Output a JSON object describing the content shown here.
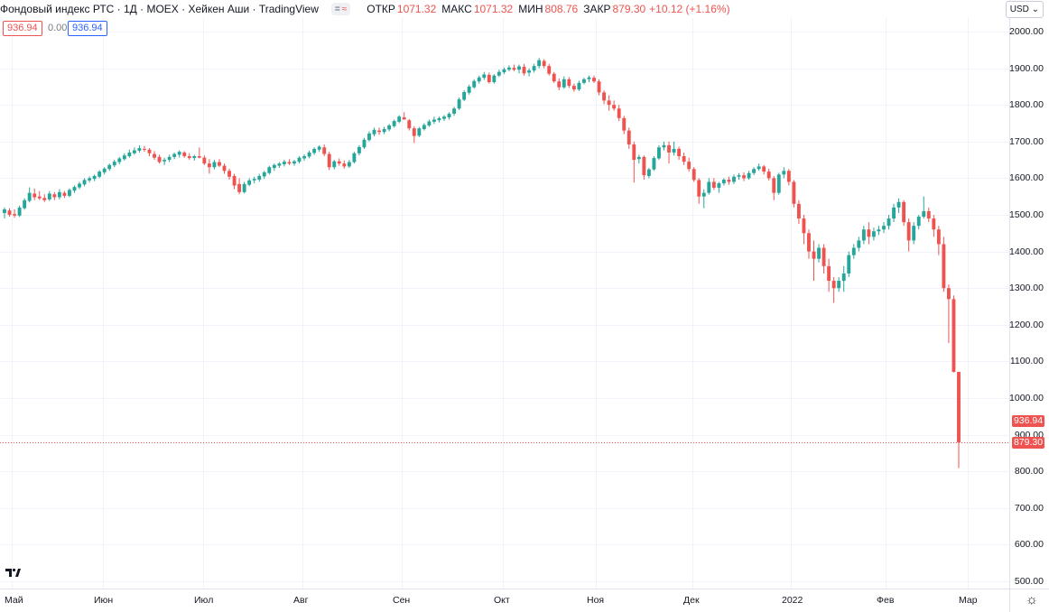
{
  "header": {
    "title": "Фондовый индекс РТС · 1Д · MOEX · Хейкен Аши · TradingView",
    "toggle_eye": "=",
    "toggle_wave": "≈",
    "open_label": "ОТКР",
    "open_value": "1071.32",
    "high_label": "МАКС",
    "high_value": "1071.32",
    "low_label": "МИН",
    "low_value": "808.76",
    "close_label": "ЗАКР",
    "close_value": "879.30",
    "change": "+10.12 (+1.16%)"
  },
  "indicators": {
    "red_value": "936.94",
    "gray_value": "0.00",
    "blue_value": "936.94"
  },
  "currency": "USD",
  "price_tags": {
    "upper": "936.94",
    "lower": "879.30"
  },
  "colors": {
    "up": "#26a69a",
    "down": "#ef5350",
    "grid": "#f0f3fa",
    "last_line": "#ef5350"
  },
  "icons": {
    "logo": "tradingview-logo-icon",
    "settings": "gear-icon",
    "dropdown": "chevron-down-icon"
  },
  "chart_data": {
    "type": "candlestick-heikin-ashi",
    "title": "Фондовый индекс РТС · 1Д · MOEX · Хейкен Аши · TradingView",
    "y_ticks": [
      "2000.00",
      "1900.00",
      "1800.00",
      "1700.00",
      "1600.00",
      "1500.00",
      "1400.00",
      "1300.00",
      "1200.00",
      "1100.00",
      "1000.00",
      "900.00",
      "800.00",
      "700.00",
      "600.00",
      "500.00"
    ],
    "ylim": [
      480,
      2020
    ],
    "x_ticks": [
      "Май",
      "Июн",
      "Июл",
      "Авг",
      "Сен",
      "Окт",
      "Ноя",
      "Дек",
      "2022",
      "Фев",
      "Мар"
    ],
    "last_close": 879.3,
    "grid": true,
    "candles": [
      {
        "o": 1505,
        "h": 1520,
        "l": 1490,
        "c": 1515
      },
      {
        "o": 1512,
        "h": 1518,
        "l": 1495,
        "c": 1500
      },
      {
        "o": 1502,
        "h": 1515,
        "l": 1492,
        "c": 1498
      },
      {
        "o": 1498,
        "h": 1525,
        "l": 1494,
        "c": 1520
      },
      {
        "o": 1518,
        "h": 1545,
        "l": 1514,
        "c": 1540
      },
      {
        "o": 1538,
        "h": 1575,
        "l": 1534,
        "c": 1560
      },
      {
        "o": 1558,
        "h": 1572,
        "l": 1540,
        "c": 1548
      },
      {
        "o": 1550,
        "h": 1565,
        "l": 1540,
        "c": 1545
      },
      {
        "o": 1546,
        "h": 1556,
        "l": 1535,
        "c": 1540
      },
      {
        "o": 1542,
        "h": 1565,
        "l": 1538,
        "c": 1558
      },
      {
        "o": 1556,
        "h": 1562,
        "l": 1540,
        "c": 1548
      },
      {
        "o": 1548,
        "h": 1570,
        "l": 1542,
        "c": 1562
      },
      {
        "o": 1560,
        "h": 1565,
        "l": 1546,
        "c": 1552
      },
      {
        "o": 1552,
        "h": 1572,
        "l": 1548,
        "c": 1568
      },
      {
        "o": 1566,
        "h": 1580,
        "l": 1560,
        "c": 1576
      },
      {
        "o": 1575,
        "h": 1590,
        "l": 1570,
        "c": 1585
      },
      {
        "o": 1583,
        "h": 1600,
        "l": 1578,
        "c": 1595
      },
      {
        "o": 1594,
        "h": 1605,
        "l": 1588,
        "c": 1600
      },
      {
        "o": 1598,
        "h": 1610,
        "l": 1592,
        "c": 1606
      },
      {
        "o": 1604,
        "h": 1622,
        "l": 1600,
        "c": 1618
      },
      {
        "o": 1616,
        "h": 1630,
        "l": 1610,
        "c": 1626
      },
      {
        "o": 1625,
        "h": 1640,
        "l": 1620,
        "c": 1636
      },
      {
        "o": 1635,
        "h": 1650,
        "l": 1630,
        "c": 1645
      },
      {
        "o": 1644,
        "h": 1658,
        "l": 1638,
        "c": 1654
      },
      {
        "o": 1652,
        "h": 1668,
        "l": 1648,
        "c": 1662
      },
      {
        "o": 1660,
        "h": 1678,
        "l": 1656,
        "c": 1670
      },
      {
        "o": 1668,
        "h": 1684,
        "l": 1664,
        "c": 1676
      },
      {
        "o": 1675,
        "h": 1690,
        "l": 1670,
        "c": 1682
      },
      {
        "o": 1680,
        "h": 1688,
        "l": 1672,
        "c": 1678
      },
      {
        "o": 1678,
        "h": 1682,
        "l": 1660,
        "c": 1668
      },
      {
        "o": 1666,
        "h": 1674,
        "l": 1650,
        "c": 1656
      },
      {
        "o": 1658,
        "h": 1664,
        "l": 1640,
        "c": 1644
      },
      {
        "o": 1646,
        "h": 1656,
        "l": 1636,
        "c": 1650
      },
      {
        "o": 1650,
        "h": 1664,
        "l": 1644,
        "c": 1658
      },
      {
        "o": 1658,
        "h": 1670,
        "l": 1652,
        "c": 1666
      },
      {
        "o": 1664,
        "h": 1676,
        "l": 1656,
        "c": 1672
      },
      {
        "o": 1670,
        "h": 1674,
        "l": 1656,
        "c": 1660
      },
      {
        "o": 1660,
        "h": 1668,
        "l": 1650,
        "c": 1655
      },
      {
        "o": 1655,
        "h": 1664,
        "l": 1648,
        "c": 1660
      },
      {
        "o": 1660,
        "h": 1684,
        "l": 1654,
        "c": 1656
      },
      {
        "o": 1656,
        "h": 1662,
        "l": 1636,
        "c": 1640
      },
      {
        "o": 1640,
        "h": 1652,
        "l": 1612,
        "c": 1630
      },
      {
        "o": 1630,
        "h": 1650,
        "l": 1624,
        "c": 1644
      },
      {
        "o": 1644,
        "h": 1652,
        "l": 1630,
        "c": 1634
      },
      {
        "o": 1634,
        "h": 1640,
        "l": 1612,
        "c": 1620
      },
      {
        "o": 1620,
        "h": 1626,
        "l": 1596,
        "c": 1604
      },
      {
        "o": 1606,
        "h": 1612,
        "l": 1570,
        "c": 1580
      },
      {
        "o": 1584,
        "h": 1600,
        "l": 1556,
        "c": 1562
      },
      {
        "o": 1562,
        "h": 1590,
        "l": 1558,
        "c": 1584
      },
      {
        "o": 1582,
        "h": 1600,
        "l": 1578,
        "c": 1594
      },
      {
        "o": 1594,
        "h": 1604,
        "l": 1586,
        "c": 1598
      },
      {
        "o": 1596,
        "h": 1612,
        "l": 1590,
        "c": 1606
      },
      {
        "o": 1605,
        "h": 1620,
        "l": 1598,
        "c": 1616
      },
      {
        "o": 1614,
        "h": 1634,
        "l": 1610,
        "c": 1630
      },
      {
        "o": 1628,
        "h": 1640,
        "l": 1620,
        "c": 1636
      },
      {
        "o": 1634,
        "h": 1644,
        "l": 1628,
        "c": 1640
      },
      {
        "o": 1638,
        "h": 1650,
        "l": 1632,
        "c": 1645
      },
      {
        "o": 1644,
        "h": 1652,
        "l": 1636,
        "c": 1640
      },
      {
        "o": 1640,
        "h": 1650,
        "l": 1634,
        "c": 1646
      },
      {
        "o": 1645,
        "h": 1660,
        "l": 1640,
        "c": 1656
      },
      {
        "o": 1654,
        "h": 1665,
        "l": 1648,
        "c": 1660
      },
      {
        "o": 1659,
        "h": 1675,
        "l": 1654,
        "c": 1670
      },
      {
        "o": 1669,
        "h": 1684,
        "l": 1664,
        "c": 1680
      },
      {
        "o": 1678,
        "h": 1690,
        "l": 1672,
        "c": 1686
      },
      {
        "o": 1684,
        "h": 1692,
        "l": 1660,
        "c": 1666
      },
      {
        "o": 1666,
        "h": 1672,
        "l": 1622,
        "c": 1630
      },
      {
        "o": 1630,
        "h": 1650,
        "l": 1624,
        "c": 1646
      },
      {
        "o": 1646,
        "h": 1654,
        "l": 1634,
        "c": 1640
      },
      {
        "o": 1640,
        "h": 1648,
        "l": 1626,
        "c": 1632
      },
      {
        "o": 1632,
        "h": 1650,
        "l": 1628,
        "c": 1644
      },
      {
        "o": 1644,
        "h": 1672,
        "l": 1640,
        "c": 1668
      },
      {
        "o": 1668,
        "h": 1690,
        "l": 1662,
        "c": 1685
      },
      {
        "o": 1684,
        "h": 1710,
        "l": 1680,
        "c": 1705
      },
      {
        "o": 1704,
        "h": 1728,
        "l": 1700,
        "c": 1722
      },
      {
        "o": 1720,
        "h": 1738,
        "l": 1714,
        "c": 1732
      },
      {
        "o": 1730,
        "h": 1738,
        "l": 1718,
        "c": 1726
      },
      {
        "o": 1726,
        "h": 1740,
        "l": 1720,
        "c": 1734
      },
      {
        "o": 1733,
        "h": 1748,
        "l": 1728,
        "c": 1744
      },
      {
        "o": 1742,
        "h": 1760,
        "l": 1738,
        "c": 1756
      },
      {
        "o": 1754,
        "h": 1772,
        "l": 1750,
        "c": 1768
      },
      {
        "o": 1766,
        "h": 1780,
        "l": 1760,
        "c": 1760
      },
      {
        "o": 1758,
        "h": 1762,
        "l": 1730,
        "c": 1736
      },
      {
        "o": 1736,
        "h": 1742,
        "l": 1696,
        "c": 1715
      },
      {
        "o": 1716,
        "h": 1740,
        "l": 1712,
        "c": 1736
      },
      {
        "o": 1734,
        "h": 1750,
        "l": 1730,
        "c": 1745
      },
      {
        "o": 1744,
        "h": 1760,
        "l": 1740,
        "c": 1755
      },
      {
        "o": 1754,
        "h": 1768,
        "l": 1748,
        "c": 1760
      },
      {
        "o": 1758,
        "h": 1768,
        "l": 1752,
        "c": 1764
      },
      {
        "o": 1762,
        "h": 1772,
        "l": 1756,
        "c": 1768
      },
      {
        "o": 1766,
        "h": 1780,
        "l": 1760,
        "c": 1776
      },
      {
        "o": 1776,
        "h": 1795,
        "l": 1770,
        "c": 1790
      },
      {
        "o": 1790,
        "h": 1820,
        "l": 1786,
        "c": 1815
      },
      {
        "o": 1814,
        "h": 1840,
        "l": 1810,
        "c": 1835
      },
      {
        "o": 1833,
        "h": 1855,
        "l": 1828,
        "c": 1850
      },
      {
        "o": 1848,
        "h": 1870,
        "l": 1844,
        "c": 1865
      },
      {
        "o": 1864,
        "h": 1880,
        "l": 1858,
        "c": 1875
      },
      {
        "o": 1874,
        "h": 1890,
        "l": 1868,
        "c": 1883
      },
      {
        "o": 1882,
        "h": 1888,
        "l": 1858,
        "c": 1862
      },
      {
        "o": 1862,
        "h": 1884,
        "l": 1858,
        "c": 1880
      },
      {
        "o": 1880,
        "h": 1896,
        "l": 1876,
        "c": 1890
      },
      {
        "o": 1889,
        "h": 1902,
        "l": 1884,
        "c": 1897
      },
      {
        "o": 1896,
        "h": 1908,
        "l": 1892,
        "c": 1902
      },
      {
        "o": 1901,
        "h": 1910,
        "l": 1892,
        "c": 1896
      },
      {
        "o": 1896,
        "h": 1910,
        "l": 1886,
        "c": 1905
      },
      {
        "o": 1904,
        "h": 1912,
        "l": 1880,
        "c": 1886
      },
      {
        "o": 1888,
        "h": 1900,
        "l": 1878,
        "c": 1894
      },
      {
        "o": 1894,
        "h": 1912,
        "l": 1888,
        "c": 1906
      },
      {
        "o": 1906,
        "h": 1928,
        "l": 1900,
        "c": 1922
      },
      {
        "o": 1920,
        "h": 1925,
        "l": 1900,
        "c": 1906
      },
      {
        "o": 1906,
        "h": 1912,
        "l": 1880,
        "c": 1885
      },
      {
        "o": 1885,
        "h": 1890,
        "l": 1860,
        "c": 1864
      },
      {
        "o": 1864,
        "h": 1872,
        "l": 1840,
        "c": 1848
      },
      {
        "o": 1848,
        "h": 1878,
        "l": 1844,
        "c": 1870
      },
      {
        "o": 1870,
        "h": 1876,
        "l": 1846,
        "c": 1852
      },
      {
        "o": 1852,
        "h": 1858,
        "l": 1836,
        "c": 1842
      },
      {
        "o": 1842,
        "h": 1866,
        "l": 1838,
        "c": 1860
      },
      {
        "o": 1860,
        "h": 1874,
        "l": 1856,
        "c": 1870
      },
      {
        "o": 1870,
        "h": 1880,
        "l": 1862,
        "c": 1875
      },
      {
        "o": 1874,
        "h": 1880,
        "l": 1860,
        "c": 1864
      },
      {
        "o": 1864,
        "h": 1870,
        "l": 1826,
        "c": 1834
      },
      {
        "o": 1834,
        "h": 1840,
        "l": 1802,
        "c": 1812
      },
      {
        "o": 1812,
        "h": 1826,
        "l": 1784,
        "c": 1800
      },
      {
        "o": 1800,
        "h": 1812,
        "l": 1784,
        "c": 1790
      },
      {
        "o": 1790,
        "h": 1800,
        "l": 1756,
        "c": 1764
      },
      {
        "o": 1764,
        "h": 1770,
        "l": 1720,
        "c": 1730
      },
      {
        "o": 1730,
        "h": 1738,
        "l": 1680,
        "c": 1692
      },
      {
        "o": 1692,
        "h": 1700,
        "l": 1588,
        "c": 1650
      },
      {
        "o": 1652,
        "h": 1664,
        "l": 1640,
        "c": 1658
      },
      {
        "o": 1658,
        "h": 1662,
        "l": 1596,
        "c": 1608
      },
      {
        "o": 1606,
        "h": 1628,
        "l": 1600,
        "c": 1624
      },
      {
        "o": 1624,
        "h": 1660,
        "l": 1620,
        "c": 1655
      },
      {
        "o": 1654,
        "h": 1690,
        "l": 1650,
        "c": 1684
      },
      {
        "o": 1684,
        "h": 1700,
        "l": 1676,
        "c": 1690
      },
      {
        "o": 1690,
        "h": 1700,
        "l": 1640,
        "c": 1670
      },
      {
        "o": 1670,
        "h": 1700,
        "l": 1662,
        "c": 1680
      },
      {
        "o": 1680,
        "h": 1686,
        "l": 1650,
        "c": 1660
      },
      {
        "o": 1660,
        "h": 1670,
        "l": 1636,
        "c": 1645
      },
      {
        "o": 1645,
        "h": 1656,
        "l": 1618,
        "c": 1625
      },
      {
        "o": 1625,
        "h": 1630,
        "l": 1590,
        "c": 1595
      },
      {
        "o": 1595,
        "h": 1600,
        "l": 1530,
        "c": 1550
      },
      {
        "o": 1550,
        "h": 1570,
        "l": 1518,
        "c": 1560
      },
      {
        "o": 1560,
        "h": 1600,
        "l": 1555,
        "c": 1590
      },
      {
        "o": 1590,
        "h": 1600,
        "l": 1568,
        "c": 1574
      },
      {
        "o": 1574,
        "h": 1590,
        "l": 1560,
        "c": 1586
      },
      {
        "o": 1586,
        "h": 1600,
        "l": 1580,
        "c": 1596
      },
      {
        "o": 1596,
        "h": 1604,
        "l": 1582,
        "c": 1590
      },
      {
        "o": 1590,
        "h": 1610,
        "l": 1584,
        "c": 1604
      },
      {
        "o": 1604,
        "h": 1614,
        "l": 1596,
        "c": 1608
      },
      {
        "o": 1608,
        "h": 1616,
        "l": 1592,
        "c": 1600
      },
      {
        "o": 1600,
        "h": 1620,
        "l": 1596,
        "c": 1614
      },
      {
        "o": 1614,
        "h": 1630,
        "l": 1608,
        "c": 1625
      },
      {
        "o": 1625,
        "h": 1640,
        "l": 1620,
        "c": 1632
      },
      {
        "o": 1632,
        "h": 1636,
        "l": 1610,
        "c": 1618
      },
      {
        "o": 1618,
        "h": 1626,
        "l": 1594,
        "c": 1600
      },
      {
        "o": 1600,
        "h": 1606,
        "l": 1540,
        "c": 1560
      },
      {
        "o": 1560,
        "h": 1615,
        "l": 1555,
        "c": 1610
      },
      {
        "o": 1610,
        "h": 1630,
        "l": 1600,
        "c": 1620
      },
      {
        "o": 1620,
        "h": 1625,
        "l": 1580,
        "c": 1590
      },
      {
        "o": 1590,
        "h": 1595,
        "l": 1520,
        "c": 1530
      },
      {
        "o": 1530,
        "h": 1540,
        "l": 1475,
        "c": 1490
      },
      {
        "o": 1490,
        "h": 1500,
        "l": 1420,
        "c": 1450
      },
      {
        "o": 1450,
        "h": 1460,
        "l": 1380,
        "c": 1400
      },
      {
        "o": 1400,
        "h": 1430,
        "l": 1320,
        "c": 1380
      },
      {
        "o": 1380,
        "h": 1420,
        "l": 1370,
        "c": 1410
      },
      {
        "o": 1410,
        "h": 1420,
        "l": 1340,
        "c": 1360
      },
      {
        "o": 1360,
        "h": 1380,
        "l": 1290,
        "c": 1320
      },
      {
        "o": 1320,
        "h": 1330,
        "l": 1260,
        "c": 1300
      },
      {
        "o": 1300,
        "h": 1330,
        "l": 1290,
        "c": 1320
      },
      {
        "o": 1320,
        "h": 1360,
        "l": 1290,
        "c": 1340
      },
      {
        "o": 1340,
        "h": 1400,
        "l": 1330,
        "c": 1390
      },
      {
        "o": 1390,
        "h": 1420,
        "l": 1380,
        "c": 1410
      },
      {
        "o": 1410,
        "h": 1440,
        "l": 1400,
        "c": 1430
      },
      {
        "o": 1430,
        "h": 1470,
        "l": 1420,
        "c": 1460
      },
      {
        "o": 1460,
        "h": 1480,
        "l": 1420,
        "c": 1440
      },
      {
        "o": 1440,
        "h": 1465,
        "l": 1430,
        "c": 1455
      },
      {
        "o": 1455,
        "h": 1470,
        "l": 1445,
        "c": 1460
      },
      {
        "o": 1460,
        "h": 1480,
        "l": 1450,
        "c": 1470
      },
      {
        "o": 1470,
        "h": 1500,
        "l": 1460,
        "c": 1490
      },
      {
        "o": 1490,
        "h": 1530,
        "l": 1480,
        "c": 1520
      },
      {
        "o": 1520,
        "h": 1545,
        "l": 1505,
        "c": 1535
      },
      {
        "o": 1535,
        "h": 1540,
        "l": 1470,
        "c": 1480
      },
      {
        "o": 1480,
        "h": 1490,
        "l": 1400,
        "c": 1430
      },
      {
        "o": 1430,
        "h": 1480,
        "l": 1420,
        "c": 1470
      },
      {
        "o": 1470,
        "h": 1500,
        "l": 1460,
        "c": 1495
      },
      {
        "o": 1495,
        "h": 1550,
        "l": 1490,
        "c": 1510
      },
      {
        "o": 1510,
        "h": 1520,
        "l": 1480,
        "c": 1490
      },
      {
        "o": 1490,
        "h": 1500,
        "l": 1440,
        "c": 1460
      },
      {
        "o": 1460,
        "h": 1470,
        "l": 1390,
        "c": 1420
      },
      {
        "o": 1420,
        "h": 1440,
        "l": 1290,
        "c": 1300
      },
      {
        "o": 1300,
        "h": 1310,
        "l": 1150,
        "c": 1270
      },
      {
        "o": 1270,
        "h": 1280,
        "l": 1070,
        "c": 1071.32
      },
      {
        "o": 1071.32,
        "h": 1071.32,
        "l": 808.76,
        "c": 879.3
      }
    ]
  }
}
